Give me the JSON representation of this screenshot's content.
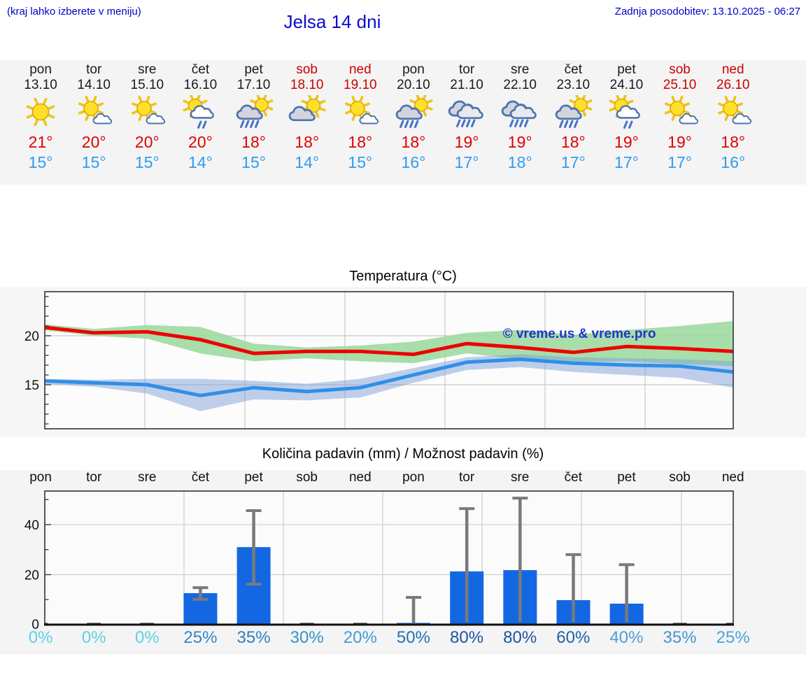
{
  "header": {
    "hint": "(kraj lahko izberete v meniju)",
    "title": "Jelsa 14 dni",
    "updated": "Zadnja posodobitev: 13.10.2025 - 06:27"
  },
  "colors": {
    "header_blue": "#0000cc",
    "weekend_red": "#cc0000",
    "high_temp_red": "#e00000",
    "low_temp_blue": "#2e9cf0",
    "bar_blue": "#1467e2",
    "watermark_blue": "#2233cc",
    "prob_zero_cyan": "#5cd2e2"
  },
  "forecast_strip": {
    "days": [
      {
        "name": "pon",
        "date": "13.10",
        "weekend": false,
        "icon": "sunny",
        "high": "21°",
        "low": "15°"
      },
      {
        "name": "tor",
        "date": "14.10",
        "weekend": false,
        "icon": "partly-cloudy",
        "high": "20°",
        "low": "15°"
      },
      {
        "name": "sre",
        "date": "15.10",
        "weekend": false,
        "icon": "partly-cloudy",
        "high": "20°",
        "low": "15°"
      },
      {
        "name": "čet",
        "date": "16.10",
        "weekend": false,
        "icon": "sun-shower",
        "high": "20°",
        "low": "14°"
      },
      {
        "name": "pet",
        "date": "17.10",
        "weekend": false,
        "icon": "sun-rain",
        "high": "18°",
        "low": "15°"
      },
      {
        "name": "sob",
        "date": "18.10",
        "weekend": true,
        "icon": "sun-gray-cloud",
        "high": "18°",
        "low": "14°"
      },
      {
        "name": "ned",
        "date": "19.10",
        "weekend": true,
        "icon": "partly-cloudy",
        "high": "18°",
        "low": "15°"
      },
      {
        "name": "pon",
        "date": "20.10",
        "weekend": false,
        "icon": "sun-rain",
        "high": "18°",
        "low": "16°"
      },
      {
        "name": "tor",
        "date": "21.10",
        "weekend": false,
        "icon": "rain",
        "high": "19°",
        "low": "17°"
      },
      {
        "name": "sre",
        "date": "22.10",
        "weekend": false,
        "icon": "rain",
        "high": "19°",
        "low": "18°"
      },
      {
        "name": "čet",
        "date": "23.10",
        "weekend": false,
        "icon": "sun-rain",
        "high": "18°",
        "low": "17°"
      },
      {
        "name": "pet",
        "date": "24.10",
        "weekend": false,
        "icon": "sun-shower",
        "high": "19°",
        "low": "17°"
      },
      {
        "name": "sob",
        "date": "25.10",
        "weekend": true,
        "icon": "partly-cloudy",
        "high": "19°",
        "low": "17°"
      },
      {
        "name": "ned",
        "date": "26.10",
        "weekend": true,
        "icon": "partly-cloudy",
        "high": "18°",
        "low": "16°"
      }
    ]
  },
  "chart_data": [
    {
      "type": "line",
      "title": "Temperatura (°C)",
      "watermark": "© vreme.us & vreme.pro",
      "categories": [
        "13.10",
        "14.10",
        "15.10",
        "16.10",
        "17.10",
        "18.10",
        "19.10",
        "20.10",
        "21.10",
        "22.10",
        "23.10",
        "24.10",
        "25.10",
        "26.10"
      ],
      "yticks": [
        "20",
        "15"
      ],
      "ylim": [
        10.5,
        24.5
      ],
      "grid": true,
      "high": [
        20.9,
        20.3,
        20.4,
        19.6,
        18.2,
        18.4,
        18.4,
        18.1,
        19.2,
        18.8,
        18.3,
        18.9,
        18.7,
        18.4
      ],
      "high_band_upper": [
        21.2,
        20.7,
        21.1,
        20.9,
        19.2,
        18.8,
        19.0,
        19.4,
        20.3,
        20.6,
        20.1,
        20.6,
        21.0,
        21.5
      ],
      "high_band_lower": [
        20.6,
        20.0,
        19.7,
        18.2,
        17.4,
        17.7,
        17.4,
        17.2,
        18.2,
        17.6,
        17.3,
        17.4,
        17.1,
        16.9
      ],
      "low": [
        15.4,
        15.2,
        15.0,
        13.9,
        14.7,
        14.3,
        14.7,
        16.0,
        17.3,
        17.6,
        17.2,
        17.0,
        16.9,
        16.3
      ],
      "low_band_upper": [
        15.6,
        15.5,
        15.6,
        15.6,
        15.4,
        15.1,
        15.6,
        16.7,
        17.8,
        18.1,
        17.8,
        17.7,
        17.6,
        17.4
      ],
      "low_band_lower": [
        15.1,
        14.8,
        14.1,
        12.3,
        13.5,
        13.4,
        13.7,
        15.2,
        16.5,
        16.8,
        16.3,
        16.0,
        15.7,
        14.7
      ],
      "series_colors": {
        "high": "#ee0000",
        "low": "#2f8fe8",
        "high_band": "#98d89a",
        "low_band": "#7f9fd8"
      }
    },
    {
      "type": "bar",
      "title": "Količina padavin (mm) / Možnost padavin (%)",
      "categories": [
        "pon",
        "tor",
        "sre",
        "čet",
        "pet",
        "sob",
        "ned",
        "pon",
        "tor",
        "sre",
        "čet",
        "pet",
        "sob",
        "ned"
      ],
      "yticks": [
        "0",
        "20",
        "40"
      ],
      "ylim": [
        0,
        54
      ],
      "grid": true,
      "values_mm": [
        0,
        0,
        0,
        12.6,
        31,
        0,
        0,
        0.7,
        21.3,
        21.8,
        9.8,
        8.4,
        0,
        0
      ],
      "whisker_max": [
        0,
        0,
        0,
        14.8,
        45.6,
        0,
        0,
        10.9,
        46.4,
        50.6,
        28,
        24,
        0,
        0
      ],
      "whisker_min": [
        0,
        0,
        0,
        10.1,
        16.2,
        0,
        0,
        0,
        1,
        1,
        1,
        1,
        0,
        0
      ],
      "probability_pct": [
        "0%",
        "0%",
        "0%",
        "25%",
        "35%",
        "30%",
        "20%",
        "50%",
        "80%",
        "80%",
        "60%",
        "40%",
        "35%",
        "25%"
      ],
      "probability_colors": [
        "#5cd2e2",
        "#5cd2e2",
        "#5cd2e2",
        "#2f86c8",
        "#2b7ec4",
        "#3390cc",
        "#3f9fd6",
        "#2270b8",
        "#1a56a3",
        "#1a56a3",
        "#1e62ae",
        "#4d9fd3",
        "#3f97d0",
        "#4aa5d9"
      ],
      "bar_color": "#1467e2"
    }
  ]
}
